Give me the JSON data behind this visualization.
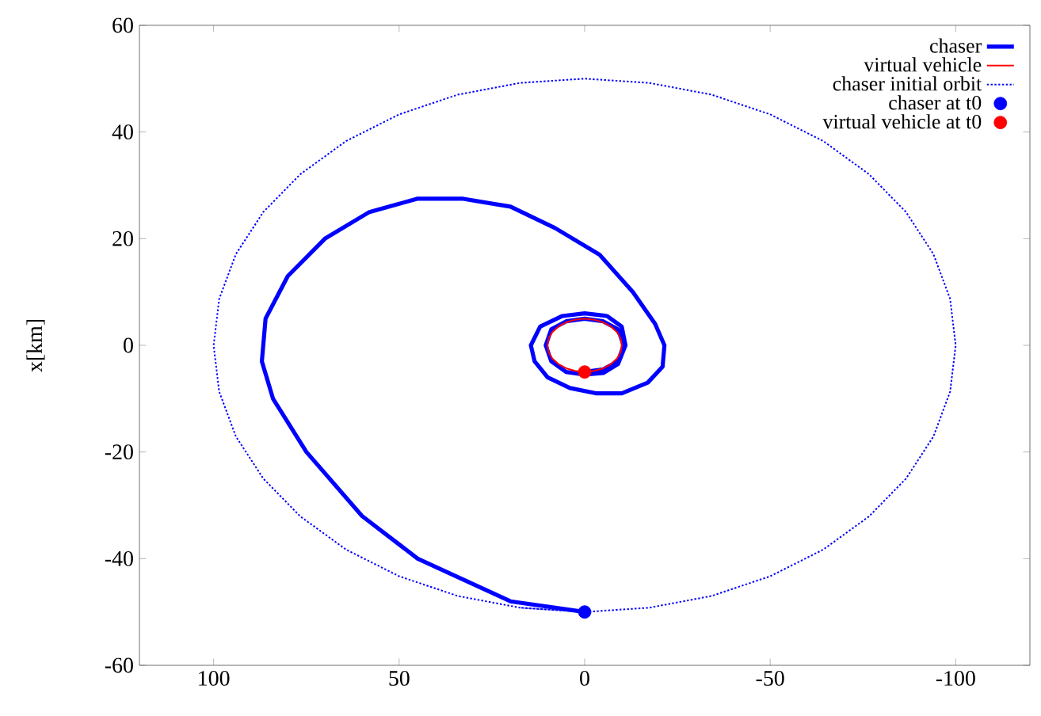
{
  "chart_data": {
    "type": "line",
    "ylabel": "x[km]",
    "xlim": [
      120,
      -120
    ],
    "xticks": [
      100,
      50,
      0,
      -50,
      -100
    ],
    "ylim": [
      -60,
      60
    ],
    "yticks": [
      -60,
      -40,
      -20,
      0,
      20,
      40,
      60
    ],
    "legend": "top right",
    "grid": false,
    "series": [
      {
        "name": "chaser",
        "type": "line",
        "color": "#0000ff",
        "line_style": "solid",
        "x": [
          0,
          20,
          45,
          60,
          75,
          84,
          87,
          86,
          80,
          70,
          58,
          45,
          33,
          20,
          8,
          -4,
          -13,
          -19,
          -21.5,
          -21,
          -17,
          -10,
          -3,
          4,
          10,
          13.5,
          14.5,
          12,
          6,
          0,
          -6,
          -10,
          -11,
          -9,
          -5,
          0,
          5,
          9,
          10.5,
          9,
          5,
          0,
          -5,
          -9,
          -10.5,
          -9,
          -5,
          0
        ],
        "values": [
          -50,
          -48,
          -40,
          -32,
          -20,
          -10,
          -3,
          5,
          13,
          20,
          25,
          27.5,
          27.5,
          26,
          22,
          17,
          10,
          4,
          0,
          -4,
          -7,
          -9,
          -9,
          -8,
          -6,
          -3,
          0,
          3.5,
          5.5,
          6,
          5.5,
          3.5,
          0,
          -3.5,
          -5.2,
          -5.5,
          -5,
          -3,
          0,
          3,
          4.5,
          5,
          4.5,
          3,
          0,
          -3,
          -4.5,
          -5
        ]
      },
      {
        "name": "virtual vehicle",
        "type": "line",
        "color": "#ff0000",
        "line_style": "solid",
        "x": [
          0,
          2.6,
          5,
          7.1,
          8.7,
          9.7,
          10,
          9.7,
          8.7,
          7.1,
          5,
          2.6,
          0,
          -2.6,
          -5,
          -7.1,
          -8.7,
          -9.7,
          -10,
          -9.7,
          -8.7,
          -7.1,
          -5,
          -2.6,
          0,
          2.6
        ],
        "values": [
          -5,
          -4.8,
          -4.3,
          -3.5,
          -2.5,
          -1.3,
          0,
          1.3,
          2.5,
          3.5,
          4.3,
          4.8,
          5,
          4.8,
          4.3,
          3.5,
          2.5,
          1.3,
          0,
          -1.3,
          -2.5,
          -3.5,
          -4.3,
          -4.8,
          -5,
          -4.8
        ]
      },
      {
        "name": "chaser initial orbit",
        "type": "line",
        "color": "#0000ff",
        "line_style": "dotted",
        "x": [
          0,
          17.4,
          34.2,
          50,
          64.3,
          76.6,
          86.6,
          94.0,
          98.5,
          100,
          98.5,
          94.0,
          86.6,
          76.6,
          64.3,
          50,
          34.2,
          17.4,
          0,
          -17.4,
          -34.2,
          -50,
          -64.3,
          -76.6,
          -86.6,
          -94.0,
          -98.5,
          -100,
          -98.5,
          -94.0,
          -86.6,
          -76.6,
          -64.3,
          -50,
          -34.2,
          -17.4,
          0,
          17.4
        ],
        "values": [
          -50,
          -49.2,
          -47.0,
          -43.3,
          -38.3,
          -32.1,
          -25,
          -17.1,
          -8.7,
          0,
          8.7,
          17.1,
          25,
          32.1,
          38.3,
          43.3,
          47.0,
          49.2,
          50,
          49.2,
          47.0,
          43.3,
          38.3,
          32.1,
          25,
          17.1,
          8.7,
          0,
          -8.7,
          -17.1,
          -25,
          -32.1,
          -38.3,
          -43.3,
          -47.0,
          -49.2,
          -50,
          -49.2
        ]
      },
      {
        "name": "chaser at t0",
        "type": "scatter",
        "color": "#0000ff",
        "marker": "circle",
        "x": [
          0
        ],
        "values": [
          -50
        ]
      },
      {
        "name": "virtual vehicle at t0",
        "type": "scatter",
        "color": "#ff0000",
        "marker": "circle",
        "x": [
          0
        ],
        "values": [
          -5
        ]
      }
    ]
  }
}
